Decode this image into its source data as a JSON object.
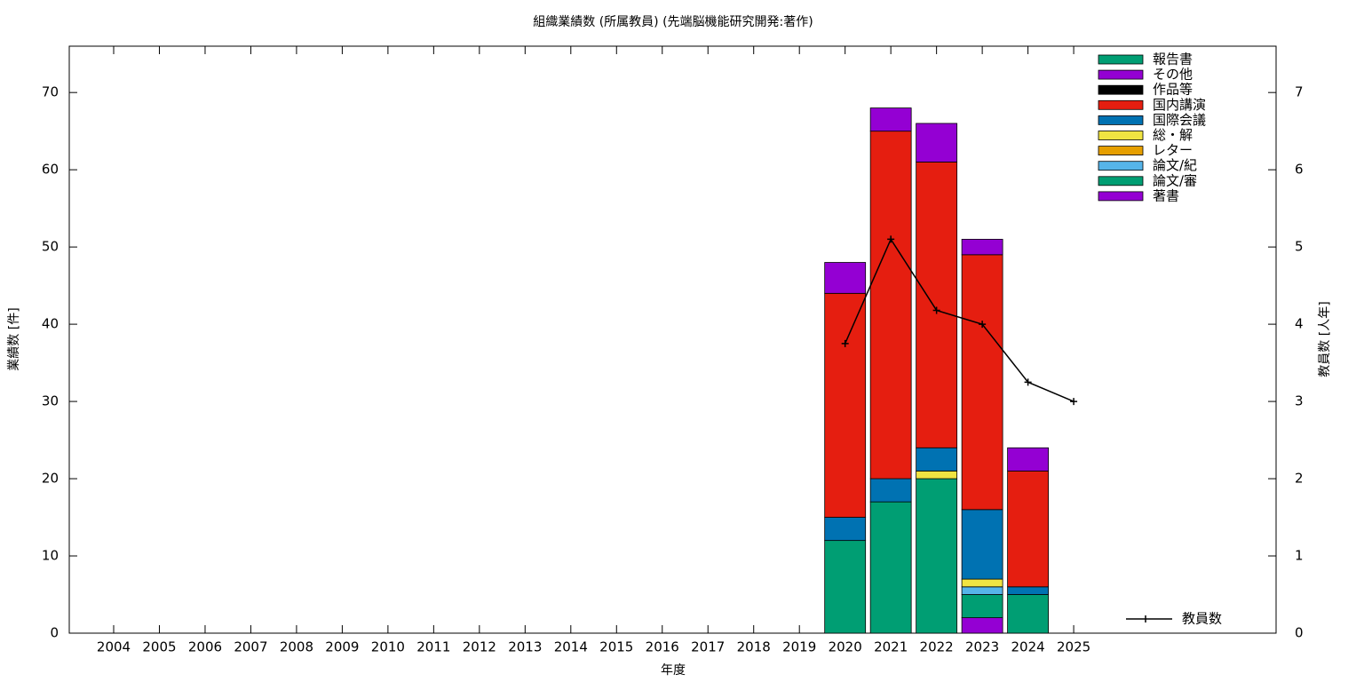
{
  "chart_data": {
    "type": "bar",
    "title": "組織業績数 (所属教員) (先端脳機能研究開発:著作)",
    "x_label": "年度",
    "y_label": "業績数 [件]",
    "y2_label": "教員数 [人年]",
    "stacked": true,
    "categories": [
      "2004",
      "2005",
      "2006",
      "2007",
      "2008",
      "2009",
      "2010",
      "2011",
      "2012",
      "2013",
      "2014",
      "2015",
      "2016",
      "2017",
      "2018",
      "2019",
      "2020",
      "2021",
      "2022",
      "2023",
      "2024",
      "2025"
    ],
    "ylim": [
      0,
      76
    ],
    "yticks": [
      0,
      10,
      20,
      30,
      40,
      50,
      60,
      70
    ],
    "y2lim": [
      0,
      7.6
    ],
    "y2ticks": [
      0,
      1,
      2,
      3,
      4,
      5,
      6,
      7
    ],
    "legend": "upper right",
    "series": [
      {
        "name": "著書",
        "color": "#9400d3",
        "values": [
          0,
          0,
          0,
          0,
          0,
          0,
          0,
          0,
          0,
          0,
          0,
          0,
          0,
          0,
          0,
          0,
          0,
          0,
          0,
          2,
          0,
          0
        ]
      },
      {
        "name": "論文/審",
        "color": "#009e73",
        "values": [
          0,
          0,
          0,
          0,
          0,
          0,
          0,
          0,
          0,
          0,
          0,
          0,
          0,
          0,
          0,
          0,
          12,
          17,
          20,
          3,
          5,
          0
        ]
      },
      {
        "name": "論文/紀",
        "color": "#56b4e9",
        "values": [
          0,
          0,
          0,
          0,
          0,
          0,
          0,
          0,
          0,
          0,
          0,
          0,
          0,
          0,
          0,
          0,
          0,
          0,
          0,
          1,
          0,
          0
        ]
      },
      {
        "name": "レター",
        "color": "#e69f00",
        "values": [
          0,
          0,
          0,
          0,
          0,
          0,
          0,
          0,
          0,
          0,
          0,
          0,
          0,
          0,
          0,
          0,
          0,
          0,
          0,
          0,
          0,
          0
        ]
      },
      {
        "name": "総・解",
        "color": "#f0e442",
        "values": [
          0,
          0,
          0,
          0,
          0,
          0,
          0,
          0,
          0,
          0,
          0,
          0,
          0,
          0,
          0,
          0,
          0,
          0,
          1,
          1,
          0,
          0
        ]
      },
      {
        "name": "国際会議",
        "color": "#0072b2",
        "values": [
          0,
          0,
          0,
          0,
          0,
          0,
          0,
          0,
          0,
          0,
          0,
          0,
          0,
          0,
          0,
          0,
          3,
          3,
          3,
          9,
          1,
          0
        ]
      },
      {
        "name": "国内講演",
        "color": "#e51e10",
        "values": [
          0,
          0,
          0,
          0,
          0,
          0,
          0,
          0,
          0,
          0,
          0,
          0,
          0,
          0,
          0,
          0,
          29,
          45,
          37,
          33,
          15,
          0
        ]
      },
      {
        "name": "作品等",
        "color": "#000000",
        "values": [
          0,
          0,
          0,
          0,
          0,
          0,
          0,
          0,
          0,
          0,
          0,
          0,
          0,
          0,
          0,
          0,
          0,
          0,
          0,
          0,
          0,
          0
        ]
      },
      {
        "name": "その他",
        "color": "#9400d3",
        "values": [
          0,
          0,
          0,
          0,
          0,
          0,
          0,
          0,
          0,
          0,
          0,
          0,
          0,
          0,
          0,
          0,
          4,
          3,
          5,
          2,
          3,
          0
        ]
      },
      {
        "name": "報告書",
        "color": "#009e73",
        "values": [
          0,
          0,
          0,
          0,
          0,
          0,
          0,
          0,
          0,
          0,
          0,
          0,
          0,
          0,
          0,
          0,
          0,
          0,
          0,
          0,
          0,
          0
        ]
      },
      {
        "name": "教員数",
        "type": "line",
        "axis": "y2",
        "color": "#000000",
        "values": [
          null,
          null,
          null,
          null,
          null,
          null,
          null,
          null,
          null,
          null,
          null,
          null,
          null,
          null,
          null,
          null,
          3.75,
          5.1,
          4.18,
          4.0,
          3.25,
          3.0
        ]
      }
    ]
  }
}
